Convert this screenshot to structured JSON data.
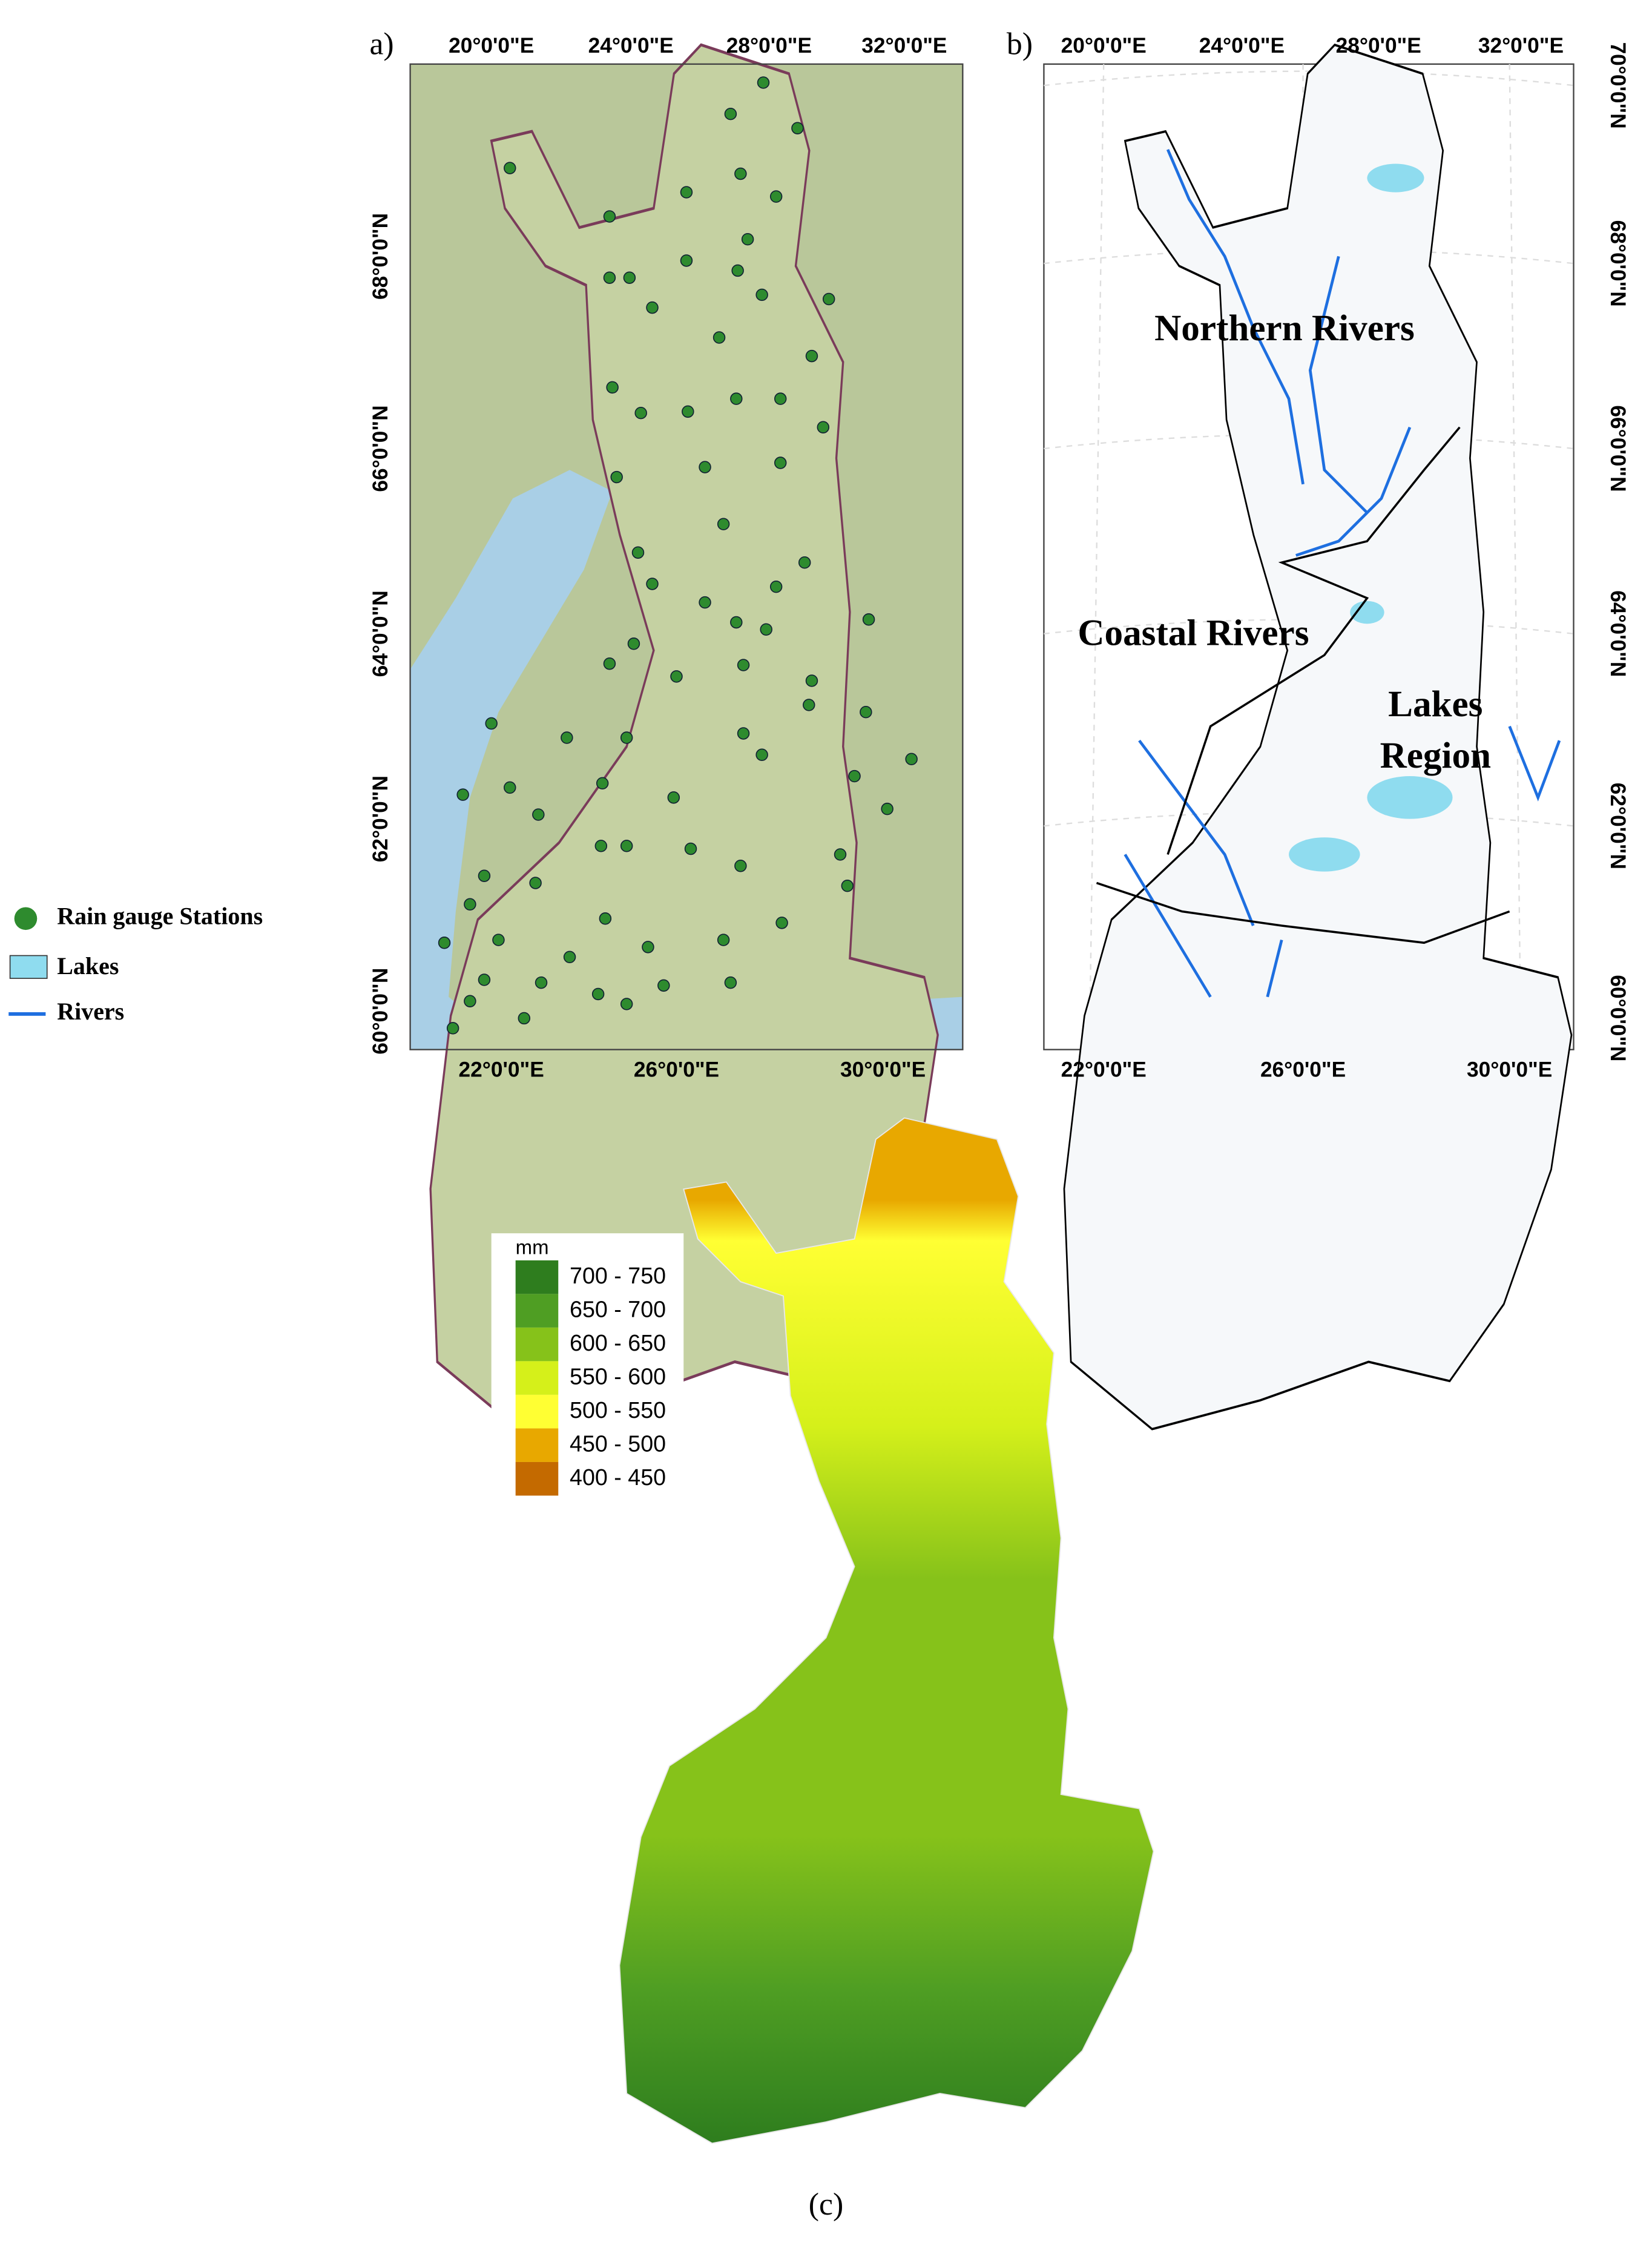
{
  "legend": [
    "Rain gauge Stations",
    "Lakes",
    "Rivers"
  ],
  "panels": [
    {
      "label": "a)",
      "top_ticks": [
        "20°0'0\"E",
        "24°0'0\"E",
        "28°0'0\"E",
        "32°0'0\"E"
      ],
      "bottom_ticks": [
        "22°0'0\"E",
        "26°0'0\"E",
        "30°0'0\"E"
      ],
      "side_ticks": [
        "68°0'0\"N",
        "66°0'0\"N",
        "64°0'0\"N",
        "62°0'0\"N",
        "60°0'0\"N"
      ]
    },
    {
      "label": "b)",
      "top_ticks": [
        "20°0'0\"E",
        "24°0'0\"E",
        "28°0'0\"E",
        "32°0'0\"E"
      ],
      "bottom_ticks": [
        "22°0'0\"E",
        "26°0'0\"E",
        "30°0'0\"E"
      ],
      "side_ticks": [
        "70°0'0\"N",
        "68°0'0\"N",
        "66°0'0\"N",
        "64°0'0\"N",
        "62°0'0\"N",
        "60°0'0\"N"
      ],
      "region_labels": [
        "Northern Rivers",
        "Coastal Rivers",
        "Lakes",
        "Region"
      ]
    },
    {
      "label": "(c)",
      "legend": {
        "title": "mm",
        "classes": [
          {
            "label": "700 - 750",
            "color": "#2e7d1e"
          },
          {
            "label": "650 - 700",
            "color": "#4f9e23"
          },
          {
            "label": "600 - 650",
            "color": "#86c21a"
          },
          {
            "label": "550 - 600",
            "color": "#d5f01a"
          },
          {
            "label": "500 - 550",
            "color": "#ffff33"
          },
          {
            "label": "450 - 500",
            "color": "#e8a800"
          },
          {
            "label": "400 - 450",
            "color": "#c46a00"
          }
        ]
      }
    }
  ]
}
